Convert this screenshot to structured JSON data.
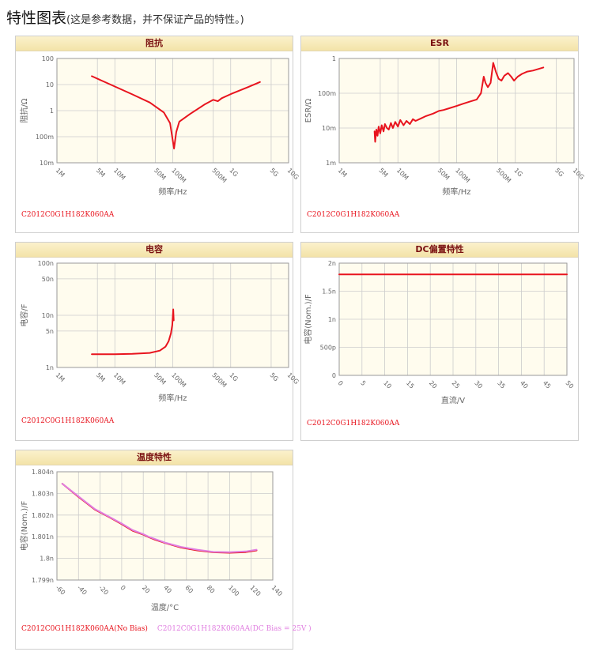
{
  "page": {
    "title": "特性图表",
    "subtitle": "(这是参考数据，并不保证产品的特性。)"
  },
  "colors": {
    "series_red": "#e8141e",
    "series_pink": "#e07ee0",
    "plot_bg": "#fffcee",
    "grid": "#cccccc"
  },
  "chart_data": [
    {
      "id": "impedance",
      "type": "line",
      "title": "阻抗",
      "xlabel": "频率/Hz",
      "ylabel": "阻抗/Ω",
      "x_scale": "log",
      "y_scale": "log",
      "xlim": [
        1000000,
        10000000000
      ],
      "ylim": [
        0.01,
        100
      ],
      "x_ticks": [
        1000000,
        5000000,
        10000000,
        50000000,
        100000000,
        500000000,
        1000000000,
        5000000000,
        10000000000
      ],
      "x_tick_labels": [
        "1M",
        "5M",
        "10M",
        "50M",
        "100M",
        "500M",
        "1G",
        "5G",
        "10G"
      ],
      "y_ticks": [
        0.01,
        0.1,
        1,
        10,
        100
      ],
      "y_tick_labels": [
        "10m",
        "100m",
        "1",
        "10",
        "100"
      ],
      "series": [
        {
          "name": "C2012C0G1H182K060AA",
          "color": "#e8141e",
          "x": [
            4000000,
            7000000,
            10000000,
            20000000,
            40000000,
            70000000,
            90000000,
            105000000,
            115000000,
            130000000,
            200000000,
            350000000,
            500000000,
            600000000,
            700000000,
            1000000000,
            2000000000,
            3200000000
          ],
          "y": [
            21,
            12,
            8.4,
            4.2,
            2.05,
            0.85,
            0.33,
            0.035,
            0.15,
            0.38,
            0.75,
            1.7,
            2.6,
            2.3,
            3.0,
            4.3,
            8.0,
            12.5
          ]
        }
      ]
    },
    {
      "id": "esr",
      "type": "line",
      "title": "ESR",
      "xlabel": "频率/Hz",
      "ylabel": "ESR/Ω",
      "x_scale": "log",
      "y_scale": "log",
      "xlim": [
        1000000,
        10000000000
      ],
      "ylim": [
        0.001,
        1
      ],
      "x_ticks": [
        1000000,
        5000000,
        10000000,
        50000000,
        100000000,
        500000000,
        1000000000,
        5000000000,
        10000000000
      ],
      "x_tick_labels": [
        "1M",
        "5M",
        "10M",
        "50M",
        "100M",
        "500M",
        "1G",
        "5G",
        "10G"
      ],
      "y_ticks": [
        0.001,
        0.01,
        0.1,
        1
      ],
      "y_tick_labels": [
        "1m",
        "10m",
        "100m",
        "1"
      ],
      "series": [
        {
          "name": "C2012C0G1H182K060AA",
          "color": "#e8141e",
          "x": [
            4000000,
            4100000,
            4300000,
            4500000,
            4700000,
            5000000,
            5300000,
            5700000,
            6000000,
            6500000,
            7000000,
            7600000,
            8200000,
            9000000,
            10000000,
            11000000,
            12500000,
            14000000,
            16000000,
            18000000,
            20000000,
            25000000,
            30000000,
            40000000,
            50000000,
            60000000,
            75000000,
            100000000,
            130000000,
            170000000,
            220000000,
            260000000,
            290000000,
            310000000,
            340000000,
            380000000,
            420000000,
            470000000,
            520000000,
            580000000,
            650000000,
            750000000,
            850000000,
            950000000,
            1100000000,
            1300000000,
            1600000000,
            2000000000,
            2500000000,
            3000000000
          ],
          "y": [
            0.008,
            0.004,
            0.009,
            0.006,
            0.011,
            0.007,
            0.012,
            0.008,
            0.013,
            0.01,
            0.009,
            0.014,
            0.01,
            0.015,
            0.011,
            0.017,
            0.012,
            0.016,
            0.013,
            0.018,
            0.016,
            0.019,
            0.022,
            0.026,
            0.031,
            0.033,
            0.037,
            0.043,
            0.05,
            0.058,
            0.066,
            0.1,
            0.3,
            0.2,
            0.15,
            0.2,
            0.75,
            0.4,
            0.26,
            0.23,
            0.32,
            0.38,
            0.3,
            0.23,
            0.3,
            0.36,
            0.42,
            0.45,
            0.5,
            0.55
          ]
        }
      ]
    },
    {
      "id": "capacitance",
      "type": "line",
      "title": "电容",
      "xlabel": "频率/Hz",
      "ylabel": "电容/F",
      "x_scale": "log",
      "y_scale": "log",
      "xlim": [
        1000000,
        10000000000
      ],
      "ylim": [
        1e-09,
        1e-07
      ],
      "x_ticks": [
        1000000,
        5000000,
        10000000,
        50000000,
        100000000,
        500000000,
        1000000000,
        5000000000,
        10000000000
      ],
      "x_tick_labels": [
        "1M",
        "5M",
        "10M",
        "50M",
        "100M",
        "500M",
        "1G",
        "5G",
        "10G"
      ],
      "y_ticks": [
        1e-09,
        5e-09,
        1e-08,
        5e-08,
        1e-07
      ],
      "y_tick_labels": [
        "1n",
        "5n",
        "10n",
        "50n",
        "100n"
      ],
      "series": [
        {
          "name": "C2012C0G1H182K060AA",
          "color": "#e8141e",
          "x": [
            4000000,
            10000000,
            20000000,
            40000000,
            60000000,
            75000000,
            85000000,
            93000000,
            98000000,
            102000000,
            104000000
          ],
          "y": [
            1.8e-09,
            1.8e-09,
            1.82e-09,
            1.9e-09,
            2.1e-09,
            2.5e-09,
            3.2e-09,
            4.5e-09,
            6.5e-09,
            1.3e-08,
            8e-09
          ]
        }
      ]
    },
    {
      "id": "dc_bias",
      "type": "line",
      "title": "DC偏置特性",
      "xlabel": "直流/V",
      "ylabel": "电容(Nom.)/F",
      "xlim": [
        0,
        50
      ],
      "ylim": [
        0,
        2e-09
      ],
      "x_ticks": [
        0,
        5,
        10,
        15,
        20,
        25,
        30,
        35,
        40,
        45,
        50
      ],
      "x_tick_labels": [
        "0",
        "5",
        "10",
        "15",
        "20",
        "25",
        "30",
        "35",
        "40",
        "45",
        "50"
      ],
      "y_ticks": [
        0,
        5e-10,
        1e-09,
        1.5e-09,
        2e-09
      ],
      "y_tick_labels": [
        "0",
        "500p",
        "1n",
        "1.5n",
        "2n"
      ],
      "series": [
        {
          "name": "C2012C0G1H182K060AA",
          "color": "#e8141e",
          "x": [
            0,
            50
          ],
          "y": [
            1.8e-09,
            1.8e-09
          ]
        }
      ]
    },
    {
      "id": "temperature",
      "type": "line",
      "title": "温度特性",
      "xlabel": "温度/°C",
      "ylabel": "电容(Nom.)/F",
      "xlim": [
        -60,
        140
      ],
      "ylim": [
        1.799e-09,
        1.804e-09
      ],
      "x_ticks": [
        -60,
        -40,
        -20,
        0,
        20,
        40,
        60,
        80,
        100,
        120,
        140
      ],
      "x_tick_labels": [
        "-60",
        "-40",
        "-20",
        "0",
        "20",
        "40",
        "60",
        "80",
        "100",
        "120",
        "140"
      ],
      "y_ticks": [
        1.799e-09,
        1.8e-09,
        1.801e-09,
        1.802e-09,
        1.803e-09,
        1.804e-09
      ],
      "y_tick_labels": [
        "1.799n",
        "1.8n",
        "1.801n",
        "1.802n",
        "1.803n",
        "1.804n"
      ],
      "series": [
        {
          "name": "C2012C0G1H182K060AA(No Bias)",
          "color": "#e8141e",
          "x": [
            -55,
            -40,
            -25,
            -10,
            0,
            10,
            20,
            25,
            30,
            40,
            55,
            70,
            85,
            100,
            115,
            125
          ],
          "y": [
            1.80345e-09,
            1.80284e-09,
            1.80226e-09,
            1.80186e-09,
            1.80158e-09,
            1.80128e-09,
            1.8011e-09,
            1.80098e-09,
            1.80088e-09,
            1.80071e-09,
            1.8005e-09,
            1.80037e-09,
            1.80028e-09,
            1.80026e-09,
            1.80029e-09,
            1.80037e-09
          ]
        },
        {
          "name": "C2012C0G1H182K060AA(DC Bias = 25V )",
          "color": "#e07ee0",
          "x": [
            -55,
            -40,
            -25,
            -10,
            0,
            10,
            20,
            25,
            30,
            40,
            55,
            70,
            85,
            100,
            115,
            125
          ],
          "y": [
            1.80345e-09,
            1.80286e-09,
            1.80228e-09,
            1.80188e-09,
            1.80161e-09,
            1.80131e-09,
            1.80112e-09,
            1.801e-09,
            1.80091e-09,
            1.80073e-09,
            1.80053e-09,
            1.8004e-09,
            1.8003e-09,
            1.80029e-09,
            1.80032e-09,
            1.8004e-09
          ]
        }
      ]
    }
  ]
}
